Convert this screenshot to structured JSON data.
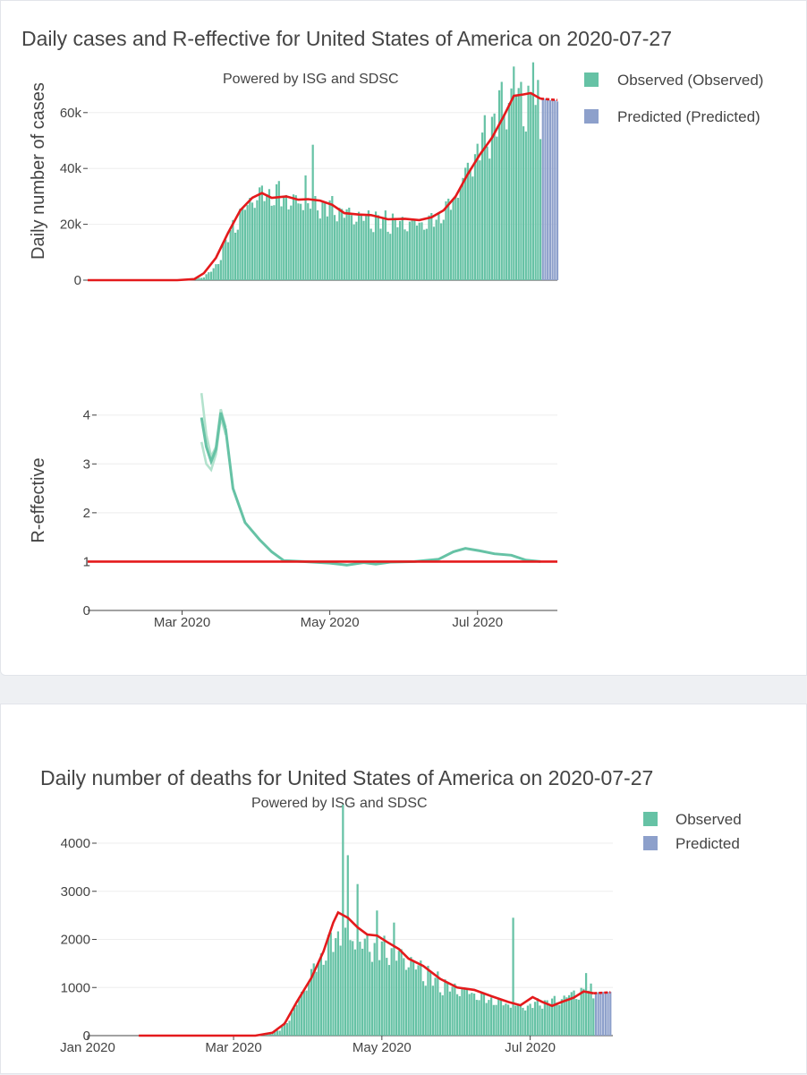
{
  "colors": {
    "observed": "#66c2a5",
    "predicted": "#8da0cb",
    "smooth": "#e41a1c",
    "r_line": "#66c2a5",
    "r_band": "#b3e2cd",
    "threshold": "#e41a1c"
  },
  "chart_data": [
    {
      "type": "bar",
      "id": "cases",
      "title": "Daily cases and R-effective for United States of America on 2020-07-27",
      "subtitle": "Powered by ISG and SDSC",
      "ylabel": "Daily number of cases",
      "ylim": [
        0,
        75000
      ],
      "y_ticks": [
        0,
        20000,
        40000,
        60000
      ],
      "y_tick_labels": [
        "0",
        "20k",
        "40k",
        "60k"
      ],
      "x_range": [
        "2020-01-22",
        "2020-08-03"
      ],
      "legend": [
        {
          "name": "Observed (Observed)",
          "color": "#66c2a5"
        },
        {
          "name": "Predicted (Predicted)",
          "color": "#8da0cb"
        }
      ],
      "observed_start": "2020-01-22",
      "observed_end": "2020-07-27",
      "observed_anchors": [
        [
          "2020-01-22",
          0
        ],
        [
          "2020-02-27",
          0
        ],
        [
          "2020-03-05",
          200
        ],
        [
          "2020-03-10",
          1200
        ],
        [
          "2020-03-15",
          5000
        ],
        [
          "2020-03-20",
          16000
        ],
        [
          "2020-03-25",
          24000
        ],
        [
          "2020-03-30",
          30000
        ],
        [
          "2020-04-04",
          32000
        ],
        [
          "2020-04-10",
          31000
        ],
        [
          "2020-04-20",
          28000
        ],
        [
          "2020-05-01",
          27000
        ],
        [
          "2020-05-10",
          24000
        ],
        [
          "2020-05-20",
          22000
        ],
        [
          "2020-06-01",
          21000
        ],
        [
          "2020-06-10",
          21000
        ],
        [
          "2020-06-15",
          23000
        ],
        [
          "2020-06-20",
          28000
        ],
        [
          "2020-06-25",
          37000
        ],
        [
          "2020-07-01",
          48000
        ],
        [
          "2020-07-06",
          55000
        ],
        [
          "2020-07-11",
          64000
        ],
        [
          "2020-07-16",
          68000
        ],
        [
          "2020-07-21",
          65000
        ],
        [
          "2020-07-27",
          62000
        ]
      ],
      "observed_spikes": [
        [
          "2020-04-24",
          48500
        ],
        [
          "2020-04-10",
          35500
        ],
        [
          "2020-04-21",
          37500
        ],
        [
          "2020-07-16",
          76500
        ],
        [
          "2020-07-24",
          78000
        ],
        [
          "2020-07-19",
          71000
        ],
        [
          "2020-07-10",
          68000
        ]
      ],
      "predicted_start": "2020-07-28",
      "predicted_end": "2020-08-03",
      "predicted_values": [
        65000,
        65000,
        65000,
        64500,
        64500,
        64500,
        64000
      ],
      "smooth_line": [
        [
          "2020-01-22",
          0
        ],
        [
          "2020-02-28",
          0
        ],
        [
          "2020-03-06",
          400
        ],
        [
          "2020-03-10",
          2500
        ],
        [
          "2020-03-15",
          8000
        ],
        [
          "2020-03-20",
          17000
        ],
        [
          "2020-03-25",
          25000
        ],
        [
          "2020-03-30",
          29500
        ],
        [
          "2020-04-03",
          31200
        ],
        [
          "2020-04-07",
          29500
        ],
        [
          "2020-04-13",
          30000
        ],
        [
          "2020-04-18",
          28800
        ],
        [
          "2020-04-22",
          29000
        ],
        [
          "2020-04-27",
          28500
        ],
        [
          "2020-05-02",
          27000
        ],
        [
          "2020-05-07",
          24000
        ],
        [
          "2020-05-13",
          23500
        ],
        [
          "2020-05-18",
          23300
        ],
        [
          "2020-05-25",
          21800
        ],
        [
          "2020-06-01",
          22000
        ],
        [
          "2020-06-07",
          21500
        ],
        [
          "2020-06-12",
          22500
        ],
        [
          "2020-06-17",
          25000
        ],
        [
          "2020-06-22",
          30000
        ],
        [
          "2020-06-27",
          38000
        ],
        [
          "2020-07-02",
          45000
        ],
        [
          "2020-07-07",
          51000
        ],
        [
          "2020-07-12",
          59000
        ],
        [
          "2020-07-16",
          66000
        ],
        [
          "2020-07-20",
          66500
        ],
        [
          "2020-07-23",
          67000
        ],
        [
          "2020-07-27",
          65000
        ],
        [
          "2020-08-03",
          64500
        ]
      ]
    },
    {
      "type": "line",
      "id": "r_effective",
      "ylabel": "R-effective",
      "ylim": [
        0,
        4.6
      ],
      "y_ticks": [
        0,
        1,
        2,
        3,
        4
      ],
      "y_tick_labels": [
        "0",
        "1",
        "2",
        "3",
        "4"
      ],
      "x_range": [
        "2020-01-22",
        "2020-08-03"
      ],
      "x_ticks": [
        "2020-03-01",
        "2020-05-01",
        "2020-07-01"
      ],
      "x_tick_labels": [
        "Mar 2020",
        "May 2020",
        "Jul 2020"
      ],
      "threshold": 1,
      "r_line": [
        [
          "2020-03-09",
          3.95
        ],
        [
          "2020-03-11",
          3.35
        ],
        [
          "2020-03-13",
          3.05
        ],
        [
          "2020-03-15",
          3.3
        ],
        [
          "2020-03-17",
          4.05
        ],
        [
          "2020-03-19",
          3.7
        ],
        [
          "2020-03-22",
          2.5
        ],
        [
          "2020-03-27",
          1.8
        ],
        [
          "2020-04-02",
          1.45
        ],
        [
          "2020-04-07",
          1.2
        ],
        [
          "2020-04-12",
          1.02
        ],
        [
          "2020-04-20",
          1.0
        ],
        [
          "2020-05-01",
          0.97
        ],
        [
          "2020-05-08",
          0.93
        ],
        [
          "2020-05-15",
          0.98
        ],
        [
          "2020-05-20",
          0.95
        ],
        [
          "2020-05-26",
          0.99
        ],
        [
          "2020-06-05",
          1.0
        ],
        [
          "2020-06-15",
          1.05
        ],
        [
          "2020-06-21",
          1.2
        ],
        [
          "2020-06-26",
          1.27
        ],
        [
          "2020-07-02",
          1.22
        ],
        [
          "2020-07-08",
          1.16
        ],
        [
          "2020-07-15",
          1.13
        ],
        [
          "2020-07-21",
          1.03
        ],
        [
          "2020-07-27",
          1.0
        ]
      ],
      "r_upper": [
        [
          "2020-03-09",
          4.45
        ],
        [
          "2020-03-11",
          3.6
        ],
        [
          "2020-03-13",
          3.15
        ],
        [
          "2020-03-15",
          3.35
        ],
        [
          "2020-03-17",
          4.12
        ],
        [
          "2020-03-19",
          3.75
        ]
      ],
      "r_lower": [
        [
          "2020-03-09",
          3.45
        ],
        [
          "2020-03-11",
          3.0
        ],
        [
          "2020-03-13",
          2.88
        ],
        [
          "2020-03-15",
          3.2
        ],
        [
          "2020-03-17",
          3.95
        ],
        [
          "2020-03-19",
          3.6
        ]
      ]
    },
    {
      "type": "bar",
      "id": "deaths",
      "title": "Daily number of deaths for United States of America on 2020-07-27",
      "subtitle": "Powered by ISG and SDSC",
      "ylim": [
        0,
        4800
      ],
      "y_ticks": [
        0,
        1000,
        2000,
        3000,
        4000
      ],
      "y_tick_labels": [
        "0",
        "1000",
        "2000",
        "3000",
        "4000"
      ],
      "x_range": [
        "2020-01-01",
        "2020-08-04"
      ],
      "x_ticks": [
        "2020-01-01",
        "2020-03-01",
        "2020-05-01",
        "2020-07-01"
      ],
      "x_tick_labels": [
        "Jan 2020",
        "Mar 2020",
        "May 2020",
        "Jul 2020"
      ],
      "legend": [
        {
          "name": "Observed",
          "color": "#66c2a5"
        },
        {
          "name": "Predicted",
          "color": "#8da0cb"
        }
      ],
      "observed_start": "2020-01-22",
      "observed_end": "2020-07-27",
      "observed_anchors": [
        [
          "2020-01-22",
          0
        ],
        [
          "2020-03-08",
          0
        ],
        [
          "2020-03-15",
          30
        ],
        [
          "2020-03-20",
          120
        ],
        [
          "2020-03-25",
          450
        ],
        [
          "2020-03-30",
          1000
        ],
        [
          "2020-04-04",
          1500
        ],
        [
          "2020-04-09",
          1900
        ],
        [
          "2020-04-14",
          2200
        ],
        [
          "2020-04-20",
          2000
        ],
        [
          "2020-04-27",
          1900
        ],
        [
          "2020-05-05",
          1800
        ],
        [
          "2020-05-12",
          1600
        ],
        [
          "2020-05-20",
          1300
        ],
        [
          "2020-05-27",
          1050
        ],
        [
          "2020-06-05",
          950
        ],
        [
          "2020-06-12",
          800
        ],
        [
          "2020-06-20",
          700
        ],
        [
          "2020-06-27",
          600
        ],
        [
          "2020-07-05",
          700
        ],
        [
          "2020-07-12",
          750
        ],
        [
          "2020-07-19",
          900
        ],
        [
          "2020-07-27",
          950
        ]
      ],
      "observed_spikes": [
        [
          "2020-04-15",
          4800
        ],
        [
          "2020-04-17",
          3750
        ],
        [
          "2020-04-21",
          3150
        ],
        [
          "2020-04-29",
          2600
        ],
        [
          "2020-05-06",
          2350
        ],
        [
          "2020-06-24",
          2450
        ],
        [
          "2020-07-24",
          1300
        ]
      ],
      "predicted_start": "2020-07-28",
      "predicted_end": "2020-08-03",
      "predicted_values": [
        900,
        900,
        900,
        910,
        910,
        910,
        910
      ],
      "smooth_line": [
        [
          "2020-01-22",
          0
        ],
        [
          "2020-03-10",
          0
        ],
        [
          "2020-03-17",
          60
        ],
        [
          "2020-03-22",
          250
        ],
        [
          "2020-03-27",
          700
        ],
        [
          "2020-04-02",
          1200
        ],
        [
          "2020-04-07",
          1750
        ],
        [
          "2020-04-11",
          2350
        ],
        [
          "2020-04-13",
          2560
        ],
        [
          "2020-04-17",
          2450
        ],
        [
          "2020-04-21",
          2250
        ],
        [
          "2020-04-25",
          2100
        ],
        [
          "2020-04-29",
          2080
        ],
        [
          "2020-05-03",
          1950
        ],
        [
          "2020-05-08",
          1800
        ],
        [
          "2020-05-12",
          1600
        ],
        [
          "2020-05-18",
          1450
        ],
        [
          "2020-05-25",
          1180
        ],
        [
          "2020-06-01",
          1000
        ],
        [
          "2020-06-08",
          950
        ],
        [
          "2020-06-15",
          820
        ],
        [
          "2020-06-22",
          700
        ],
        [
          "2020-06-27",
          630
        ],
        [
          "2020-07-02",
          800
        ],
        [
          "2020-07-06",
          700
        ],
        [
          "2020-07-10",
          620
        ],
        [
          "2020-07-14",
          700
        ],
        [
          "2020-07-19",
          790
        ],
        [
          "2020-07-23",
          920
        ],
        [
          "2020-07-27",
          880
        ],
        [
          "2020-08-03",
          900
        ]
      ]
    }
  ]
}
